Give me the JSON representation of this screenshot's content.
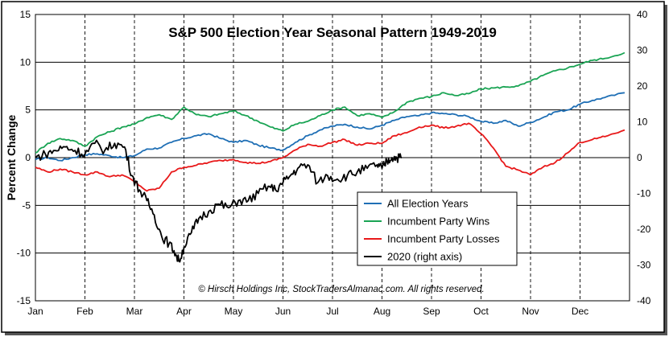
{
  "chart_data": {
    "type": "line",
    "title": "S&P 500 Election Year Seasonal Pattern 1949-2019",
    "ylabel": "Percent Change",
    "ylim": [
      -15,
      15
    ],
    "y_ticks": [
      15,
      10,
      5,
      0,
      -5,
      -10,
      -15
    ],
    "y2lim": [
      -40,
      40
    ],
    "y2_ticks": [
      40,
      30,
      20,
      10,
      0,
      -10,
      -20,
      -30,
      -40
    ],
    "categories": [
      "Jan",
      "Feb",
      "Mar",
      "Apr",
      "May",
      "Jun",
      "Jul",
      "Aug",
      "Sep",
      "Oct",
      "Nov",
      "Dec"
    ],
    "copyright": "© Hirsch Holdings Inc, StockTradersAlmanac.com.  All rights reserved.",
    "legend_position": "bottom-center",
    "series": [
      {
        "name": "All Election Years",
        "axis": "left",
        "color": "#1f6fb5",
        "x": [
          0,
          0.25,
          0.5,
          0.75,
          1,
          1.25,
          1.5,
          1.75,
          2,
          2.25,
          2.5,
          2.75,
          3,
          3.25,
          3.5,
          3.75,
          4,
          4.25,
          4.5,
          4.75,
          5,
          5.25,
          5.5,
          5.75,
          6,
          6.25,
          6.5,
          6.75,
          7,
          7.25,
          7.5,
          7.75,
          8,
          8.25,
          8.5,
          8.75,
          9,
          9.25,
          9.5,
          9.75,
          10,
          10.25,
          10.5,
          10.75,
          11,
          11.25,
          11.5,
          11.9
        ],
        "values": [
          -0.2,
          0.0,
          -0.3,
          0.0,
          0.3,
          0.4,
          0.2,
          0.0,
          0.2,
          0.9,
          1.0,
          1.6,
          2.0,
          2.3,
          2.5,
          2.0,
          1.6,
          1.8,
          1.3,
          1.0,
          0.8,
          1.6,
          2.3,
          2.9,
          3.3,
          3.5,
          3.2,
          3.0,
          3.4,
          3.9,
          4.3,
          4.4,
          4.7,
          4.6,
          4.5,
          4.3,
          3.8,
          3.6,
          3.9,
          3.3,
          3.7,
          4.2,
          4.8,
          5.0,
          5.6,
          6.0,
          6.3,
          6.8
        ]
      },
      {
        "name": "Incumbent Party Wins",
        "axis": "left",
        "color": "#1aa454",
        "x": [
          0,
          0.25,
          0.5,
          0.75,
          1,
          1.25,
          1.5,
          1.75,
          2,
          2.25,
          2.5,
          2.75,
          3,
          3.25,
          3.5,
          3.75,
          4,
          4.25,
          4.5,
          4.75,
          5,
          5.25,
          5.5,
          5.75,
          6,
          6.25,
          6.5,
          6.75,
          7,
          7.25,
          7.5,
          7.75,
          8,
          8.25,
          8.5,
          8.75,
          9,
          9.25,
          9.5,
          9.75,
          10,
          10.25,
          10.5,
          10.75,
          11,
          11.25,
          11.5,
          11.9
        ],
        "values": [
          0.5,
          1.5,
          2.0,
          1.8,
          1.2,
          2.2,
          2.7,
          3.2,
          3.5,
          4.2,
          4.5,
          4.0,
          5.3,
          4.5,
          4.3,
          4.6,
          4.9,
          4.4,
          3.8,
          3.2,
          2.8,
          3.5,
          3.8,
          4.4,
          5.0,
          5.3,
          4.4,
          4.6,
          4.2,
          4.8,
          5.8,
          6.2,
          6.4,
          6.8,
          6.5,
          6.7,
          7.2,
          7.3,
          7.4,
          7.5,
          8.0,
          8.6,
          9.1,
          9.4,
          9.8,
          10.2,
          10.4,
          11.0
        ]
      },
      {
        "name": "Incumbent Party Losses",
        "axis": "left",
        "color": "#e8191a",
        "x": [
          0,
          0.25,
          0.5,
          0.75,
          1,
          1.25,
          1.5,
          1.75,
          2,
          2.25,
          2.5,
          2.75,
          3,
          3.25,
          3.5,
          3.75,
          4,
          4.25,
          4.5,
          4.75,
          5,
          5.25,
          5.5,
          5.75,
          6,
          6.25,
          6.5,
          6.75,
          7,
          7.25,
          7.5,
          7.75,
          8,
          8.25,
          8.5,
          8.75,
          9,
          9.25,
          9.5,
          9.75,
          10,
          10.25,
          10.5,
          10.75,
          11,
          11.25,
          11.5,
          11.9
        ],
        "values": [
          -1.0,
          -1.5,
          -1.2,
          -1.5,
          -1.8,
          -1.5,
          -2.0,
          -1.8,
          -2.5,
          -3.5,
          -3.2,
          -1.5,
          -1.0,
          -0.8,
          -0.5,
          -0.3,
          -0.2,
          -0.5,
          -0.6,
          -0.4,
          0.0,
          0.8,
          1.4,
          1.2,
          1.6,
          1.9,
          1.3,
          1.5,
          1.5,
          2.3,
          2.6,
          3.2,
          3.4,
          3.1,
          3.3,
          3.6,
          2.5,
          1.0,
          -0.9,
          -1.3,
          -1.8,
          -1.0,
          -0.5,
          0.5,
          1.6,
          1.9,
          2.2,
          2.9
        ]
      },
      {
        "name": "2020 (right axis)",
        "axis": "right",
        "color": "#000000",
        "x": [
          0,
          0.2,
          0.4,
          0.6,
          0.8,
          1.0,
          1.2,
          1.4,
          1.6,
          1.8,
          1.95,
          2.1,
          2.25,
          2.4,
          2.55,
          2.7,
          2.8,
          2.9,
          3.0,
          3.15,
          3.3,
          3.5,
          3.7,
          3.9,
          4.1,
          4.3,
          4.5,
          4.7,
          4.85,
          5.0,
          5.15,
          5.3,
          5.5,
          5.7,
          5.9,
          6.1,
          6.3,
          6.5,
          6.7,
          6.9,
          7.0,
          7.1,
          7.2,
          7.3,
          7.4
        ],
        "values": [
          0,
          1,
          2,
          3,
          2,
          1,
          4,
          2,
          4,
          3,
          -5,
          -9,
          -12,
          -16,
          -22,
          -24,
          -26,
          -29,
          -25,
          -21,
          -17,
          -15,
          -13,
          -14,
          -12,
          -12,
          -10,
          -8,
          -9,
          -7,
          -5,
          -3,
          -2,
          -7,
          -5,
          -6,
          -5,
          -4,
          -3,
          -2,
          -3,
          -1,
          0,
          0,
          0
        ]
      }
    ]
  }
}
